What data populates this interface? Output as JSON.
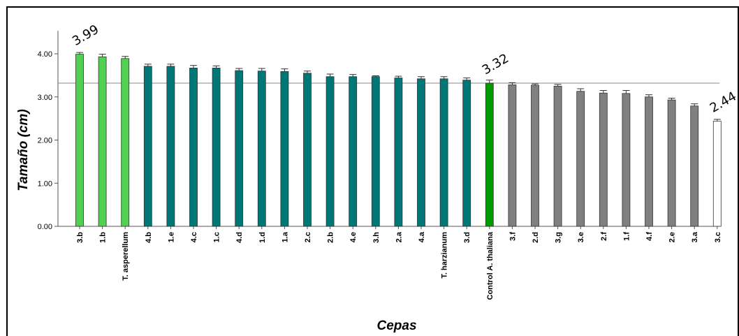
{
  "chart_data": {
    "type": "bar",
    "title": "",
    "xlabel": "Cepas",
    "ylabel": "Tamaño (cm)",
    "ylim": [
      0,
      4.5
    ],
    "yticks": [
      "0.00",
      "1.00",
      "2.00",
      "3.00",
      "4.00"
    ],
    "grid": false,
    "reference_line": 3.32,
    "categories": [
      "3.b",
      "1.b",
      "T. asperellum",
      "4.b",
      "1.e",
      "4.c",
      "1.c",
      "4.d",
      "1.d",
      "1.a",
      "2.c",
      "2.b",
      "4.e",
      "3.h",
      "2.a",
      "4.a",
      "T. harzianum",
      "3.d",
      "Control A. thaliana",
      "3.f",
      "2.d",
      "3.g",
      "3.e",
      "2.f",
      "1.f",
      "4.f",
      "2.e",
      "3.a",
      "3.c"
    ],
    "values": [
      3.99,
      3.93,
      3.89,
      3.71,
      3.71,
      3.67,
      3.67,
      3.61,
      3.6,
      3.59,
      3.55,
      3.47,
      3.47,
      3.47,
      3.44,
      3.42,
      3.42,
      3.39,
      3.32,
      3.28,
      3.27,
      3.25,
      3.13,
      3.09,
      3.08,
      3.0,
      2.93,
      2.79,
      2.44
    ],
    "errors": [
      0.04,
      0.06,
      0.05,
      0.05,
      0.05,
      0.06,
      0.05,
      0.05,
      0.06,
      0.06,
      0.05,
      0.06,
      0.05,
      0.02,
      0.04,
      0.05,
      0.05,
      0.05,
      0.07,
      0.05,
      0.03,
      0.04,
      0.06,
      0.06,
      0.07,
      0.05,
      0.04,
      0.05,
      0.04
    ],
    "bar_colors": [
      "#52d052",
      "#52d052",
      "#52d052",
      "#007777",
      "#007777",
      "#007777",
      "#007777",
      "#007777",
      "#007777",
      "#007777",
      "#007777",
      "#007777",
      "#007777",
      "#007777",
      "#007777",
      "#007777",
      "#007777",
      "#007777",
      "#009900",
      "#808080",
      "#808080",
      "#808080",
      "#808080",
      "#808080",
      "#808080",
      "#808080",
      "#808080",
      "#808080",
      "#ffffff"
    ],
    "annotations": [
      {
        "index": 0,
        "text": "3.99"
      },
      {
        "index": 18,
        "text": "3.32"
      },
      {
        "index": 28,
        "text": "2.44"
      }
    ]
  }
}
